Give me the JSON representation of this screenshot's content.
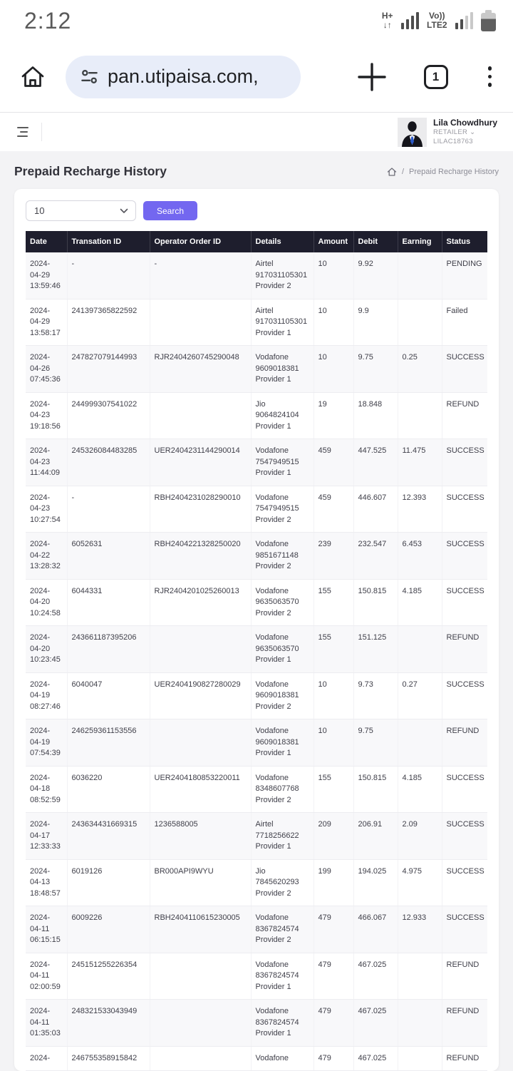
{
  "status_bar": {
    "time": "2:12",
    "network_type": "H+",
    "network_arrows": "↓↑",
    "volte_label": "Vo))",
    "lte_label": "LTE2"
  },
  "browser": {
    "url": "pan.utipaisa.com,",
    "tab_count": "1"
  },
  "header": {
    "user_name": "Lila Chowdhury",
    "user_role": "RETAILER",
    "user_id": "LILAC18763"
  },
  "icons": {
    "caret_down": "⌄",
    "breadcrumb_separator": "/"
  },
  "page": {
    "title": "Prepaid Recharge History",
    "breadcrumb_current": "Prepaid Recharge History"
  },
  "controls": {
    "page_size": "10",
    "search_label": "Search"
  },
  "colors": {
    "accent_purple": "#7367f0",
    "table_header_bg": "#1e1e2d",
    "url_pill_bg": "#e8edf9"
  },
  "table": {
    "columns": [
      "Date",
      "Transation ID",
      "Operator Order ID",
      "Details",
      "Amount",
      "Debit",
      "Earning",
      "Status"
    ],
    "rows": [
      {
        "date": [
          "2024-",
          "04-29",
          "13:59:46"
        ],
        "tid": "-",
        "oid": "-",
        "details": [
          "Airtel",
          "917031105301",
          "Provider 2"
        ],
        "amount": "10",
        "debit": "9.92",
        "earning": "",
        "status": "PENDING"
      },
      {
        "date": [
          "2024-",
          "04-29",
          "13:58:17"
        ],
        "tid": "241397365822592",
        "oid": "",
        "details": [
          "Airtel",
          "917031105301",
          "Provider 1"
        ],
        "amount": "10",
        "debit": "9.9",
        "earning": "",
        "status": "Failed"
      },
      {
        "date": [
          "2024-",
          "04-26",
          "07:45:36"
        ],
        "tid": "247827079144993",
        "oid": "RJR2404260745290048",
        "details": [
          "Vodafone",
          "9609018381",
          "Provider 1"
        ],
        "amount": "10",
        "debit": "9.75",
        "earning": "0.25",
        "status": "SUCCESS"
      },
      {
        "date": [
          "2024-",
          "04-23",
          "19:18:56"
        ],
        "tid": "244999307541022",
        "oid": "",
        "details": [
          "Jio",
          "9064824104",
          "Provider 1"
        ],
        "amount": "19",
        "debit": "18.848",
        "earning": "",
        "status": "REFUND"
      },
      {
        "date": [
          "2024-",
          "04-23",
          "11:44:09"
        ],
        "tid": "245326084483285",
        "oid": "UER2404231144290014",
        "details": [
          "Vodafone",
          "7547949515",
          "Provider 1"
        ],
        "amount": "459",
        "debit": "447.525",
        "earning": "11.475",
        "status": "SUCCESS"
      },
      {
        "date": [
          "2024-",
          "04-23",
          "10:27:54"
        ],
        "tid": "-",
        "oid": "RBH2404231028290010",
        "details": [
          "Vodafone",
          "7547949515",
          "Provider 2"
        ],
        "amount": "459",
        "debit": "446.607",
        "earning": "12.393",
        "status": "SUCCESS"
      },
      {
        "date": [
          "2024-",
          "04-22",
          "13:28:32"
        ],
        "tid": "6052631",
        "oid": "RBH2404221328250020",
        "details": [
          "Vodafone",
          "9851671148",
          "Provider 2"
        ],
        "amount": "239",
        "debit": "232.547",
        "earning": "6.453",
        "status": "SUCCESS"
      },
      {
        "date": [
          "2024-",
          "04-20",
          "10:24:58"
        ],
        "tid": "6044331",
        "oid": "RJR2404201025260013",
        "details": [
          "Vodafone",
          "9635063570",
          "Provider 2"
        ],
        "amount": "155",
        "debit": "150.815",
        "earning": "4.185",
        "status": "SUCCESS"
      },
      {
        "date": [
          "2024-",
          "04-20",
          "10:23:45"
        ],
        "tid": "243661187395206",
        "oid": "",
        "details": [
          "Vodafone",
          "9635063570",
          "Provider 1"
        ],
        "amount": "155",
        "debit": "151.125",
        "earning": "",
        "status": "REFUND"
      },
      {
        "date": [
          "2024-",
          "04-19",
          "08:27:46"
        ],
        "tid": "6040047",
        "oid": "UER2404190827280029",
        "details": [
          "Vodafone",
          "9609018381",
          "Provider 2"
        ],
        "amount": "10",
        "debit": "9.73",
        "earning": "0.27",
        "status": "SUCCESS"
      },
      {
        "date": [
          "2024-",
          "04-19",
          "07:54:39"
        ],
        "tid": "246259361153556",
        "oid": "",
        "details": [
          "Vodafone",
          "9609018381",
          "Provider 1"
        ],
        "amount": "10",
        "debit": "9.75",
        "earning": "",
        "status": "REFUND"
      },
      {
        "date": [
          "2024-",
          "04-18",
          "08:52:59"
        ],
        "tid": "6036220",
        "oid": "UER2404180853220011",
        "details": [
          "Vodafone",
          "8348607768",
          "Provider 2"
        ],
        "amount": "155",
        "debit": "150.815",
        "earning": "4.185",
        "status": "SUCCESS"
      },
      {
        "date": [
          "2024-",
          "04-17",
          "12:33:33"
        ],
        "tid": "243634431669315",
        "oid": "1236588005",
        "details": [
          "Airtel",
          "7718256622",
          "Provider 1"
        ],
        "amount": "209",
        "debit": "206.91",
        "earning": "2.09",
        "status": "SUCCESS"
      },
      {
        "date": [
          "2024-",
          "04-13",
          "18:48:57"
        ],
        "tid": "6019126",
        "oid": "BR000API9WYU",
        "details": [
          "Jio",
          "7845620293",
          "Provider 2"
        ],
        "amount": "199",
        "debit": "194.025",
        "earning": "4.975",
        "status": "SUCCESS"
      },
      {
        "date": [
          "2024-",
          "04-11",
          "06:15:15"
        ],
        "tid": "6009226",
        "oid": "RBH2404110615230005",
        "details": [
          "Vodafone",
          "8367824574",
          "Provider 2"
        ],
        "amount": "479",
        "debit": "466.067",
        "earning": "12.933",
        "status": "SUCCESS"
      },
      {
        "date": [
          "2024-",
          "04-11",
          "02:00:59"
        ],
        "tid": "245151255226354",
        "oid": "",
        "details": [
          "Vodafone",
          "8367824574",
          "Provider 1"
        ],
        "amount": "479",
        "debit": "467.025",
        "earning": "",
        "status": "REFUND"
      },
      {
        "date": [
          "2024-",
          "04-11",
          "01:35:03"
        ],
        "tid": "248321533043949",
        "oid": "",
        "details": [
          "Vodafone",
          "8367824574",
          "Provider 1"
        ],
        "amount": "479",
        "debit": "467.025",
        "earning": "",
        "status": "REFUND"
      },
      {
        "date": [
          "2024-"
        ],
        "tid": "246755358915842",
        "oid": "",
        "details": [
          "Vodafone"
        ],
        "amount": "479",
        "debit": "467.025",
        "earning": "",
        "status": "REFUND"
      }
    ]
  }
}
